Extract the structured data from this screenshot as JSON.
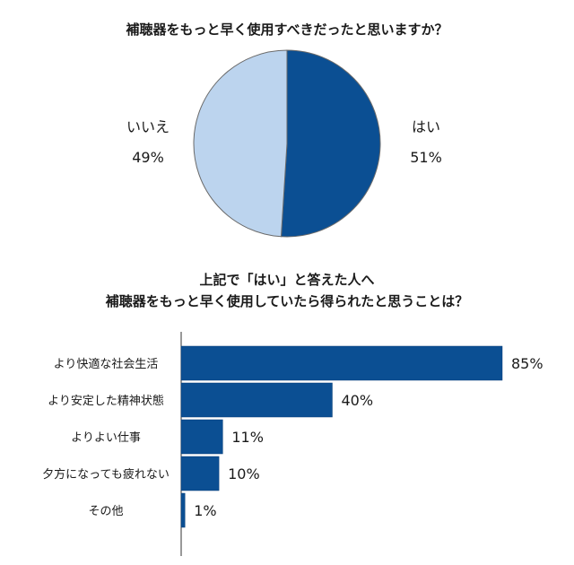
{
  "chart_data": [
    {
      "type": "pie",
      "title": "補聴器をもっと早く使用すべきだったと思いますか？",
      "slices": [
        {
          "label": "はい",
          "value": 51,
          "value_label": "51%",
          "color": "#0b4f93"
        },
        {
          "label": "いいえ",
          "value": 49,
          "value_label": "49%",
          "color": "#bcd4ee"
        }
      ],
      "legend": "none"
    },
    {
      "type": "bar",
      "orientation": "horizontal",
      "title_lines": [
        "上記で「はい」と答えた人へ",
        "補聴器をもっと早く使用していたら得られたと思うことは？"
      ],
      "categories": [
        "より快適な社会生活",
        "より安定した精神状態",
        "よりよい仕事",
        "夕方になっても疲れない",
        "その他"
      ],
      "values": [
        85,
        40,
        11,
        10,
        1
      ],
      "value_labels": [
        "85%",
        "40%",
        "11%",
        "10%",
        "1%"
      ],
      "xlim": [
        0,
        85
      ],
      "bar_color": "#0b4f93",
      "grid": false
    }
  ]
}
